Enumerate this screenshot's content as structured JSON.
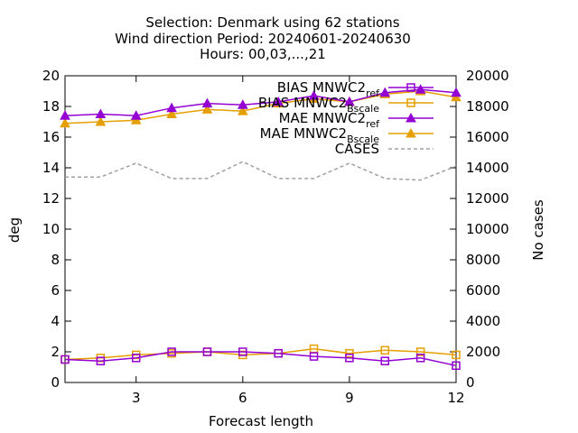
{
  "chart_data": {
    "type": "line",
    "title_lines": [
      "Selection: Denmark using    62 stations",
      "Wind direction   Period: 20240601-20240630",
      "Hours: 00,03,...,21"
    ],
    "xlabel": "Forecast length",
    "ylabel": "deg",
    "y2label": "No cases",
    "xlim": [
      1,
      12
    ],
    "ylim": [
      0,
      20
    ],
    "y2lim": [
      0,
      20000
    ],
    "xticks": [
      3,
      6,
      9,
      12
    ],
    "yticks": [
      0,
      2,
      4,
      6,
      8,
      10,
      12,
      14,
      16,
      18,
      20
    ],
    "y2ticks": [
      0,
      2000,
      4000,
      6000,
      8000,
      10000,
      12000,
      14000,
      16000,
      18000,
      20000
    ],
    "grid": false,
    "legend_position": "top-right",
    "x": [
      1,
      2,
      3,
      4,
      5,
      6,
      7,
      8,
      9,
      10,
      11,
      12
    ],
    "series": [
      {
        "name": "BIAS MNWC2_ref",
        "legend_main": "BIAS MNWC2",
        "legend_sub": "ref",
        "color": "#9400d3",
        "marker": "square",
        "axis": "y",
        "values": [
          1.5,
          1.4,
          1.6,
          2.0,
          2.0,
          2.0,
          1.9,
          1.7,
          1.6,
          1.4,
          1.6,
          1.1
        ]
      },
      {
        "name": "BIAS MNWC2_Bscale",
        "legend_main": "BIAS MNWC2",
        "legend_sub": "Bscale",
        "color": "#e69f00",
        "marker": "square",
        "axis": "y",
        "values": [
          1.5,
          1.6,
          1.8,
          1.9,
          2.0,
          1.8,
          1.9,
          2.2,
          1.9,
          2.1,
          2.0,
          1.8
        ]
      },
      {
        "name": "MAE MNWC2_ref",
        "legend_main": "MAE MNWC2",
        "legend_sub": "ref",
        "color": "#9400d3",
        "marker": "triangle",
        "axis": "y",
        "values": [
          17.4,
          17.5,
          17.4,
          17.9,
          18.2,
          18.1,
          18.3,
          18.7,
          18.3,
          18.9,
          19.1,
          18.9
        ]
      },
      {
        "name": "MAE MNWC2_Bscale",
        "legend_main": "MAE MNWC2",
        "legend_sub": "Bscale",
        "color": "#e69f00",
        "marker": "triangle",
        "axis": "y",
        "values": [
          16.9,
          17.0,
          17.1,
          17.5,
          17.8,
          17.7,
          18.2,
          18.5,
          18.3,
          18.8,
          19.0,
          18.6
        ]
      },
      {
        "name": "CASES",
        "legend_main": "CASES",
        "legend_sub": "",
        "color": "#a0a0a0",
        "marker": "none",
        "dashed": true,
        "axis": "y2",
        "values": [
          13400,
          13400,
          14300,
          13300,
          13300,
          14400,
          13300,
          13300,
          14300,
          13300,
          13200,
          14100
        ]
      }
    ]
  }
}
